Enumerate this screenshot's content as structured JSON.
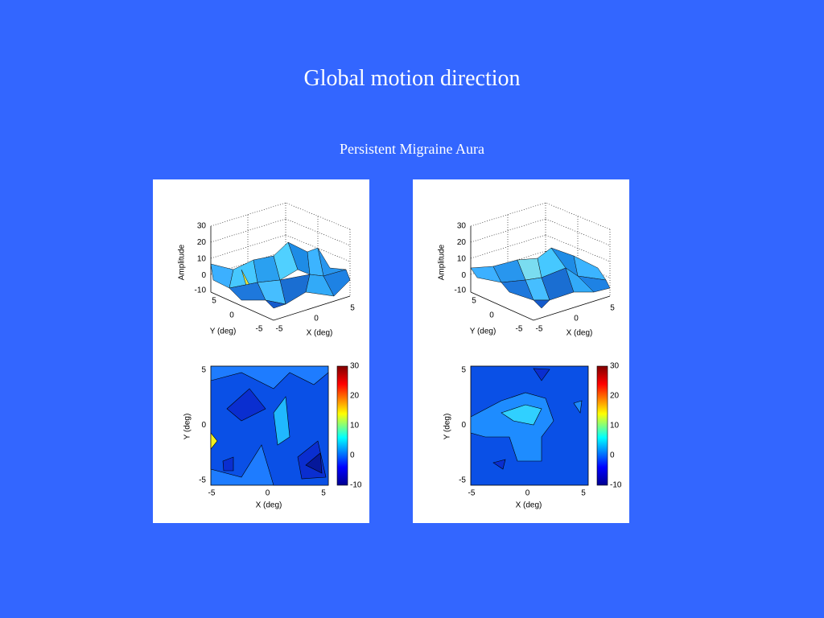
{
  "title": "Global motion direction",
  "subtitle": "Persistent Migraine Aura",
  "panels": [
    {
      "surface": {
        "zlabel": "Amplitude",
        "ylabel": "Y (deg)",
        "xlabel": "X (deg)",
        "zticks": [
          "30",
          "20",
          "10",
          "0",
          "-10"
        ],
        "yticks": [
          "5",
          "0",
          "-5"
        ],
        "xticks": [
          "-5",
          "0",
          "5"
        ]
      },
      "contour": {
        "ylabel": "Y (deg)",
        "xlabel": "X (deg)",
        "yticks": [
          "5",
          "0",
          "-5"
        ],
        "xticks": [
          "-5",
          "0",
          "5"
        ],
        "colorbar_ticks": [
          "30",
          "20",
          "10",
          "0",
          "-10"
        ]
      }
    },
    {
      "surface": {
        "zlabel": "Amplitude",
        "ylabel": "Y (deg)",
        "xlabel": "X (deg)",
        "zticks": [
          "30",
          "20",
          "10",
          "0",
          "-10"
        ],
        "yticks": [
          "5",
          "0",
          "-5"
        ],
        "xticks": [
          "-5",
          "0",
          "5"
        ]
      },
      "contour": {
        "ylabel": "Y (deg)",
        "xlabel": "X (deg)",
        "yticks": [
          "5",
          "0",
          "-5"
        ],
        "xticks": [
          "-5",
          "0",
          "5"
        ],
        "colorbar_ticks": [
          "30",
          "20",
          "10",
          "0",
          "-10"
        ]
      }
    }
  ]
}
